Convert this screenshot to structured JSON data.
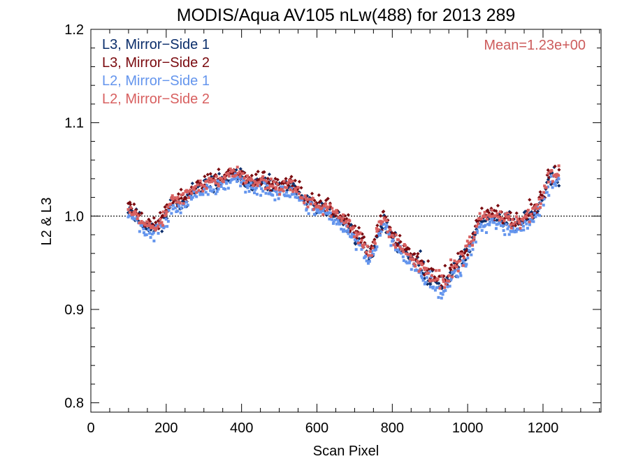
{
  "chart_data": {
    "type": "scatter",
    "title": "MODIS/Aqua AV105 nLw(488) for 2013 289",
    "xlabel": "Scan Pixel",
    "ylabel": "L2 & L3",
    "xlim": [
      0,
      1354
    ],
    "ylim": [
      0.79,
      1.2
    ],
    "x_ticks": [
      0,
      200,
      400,
      600,
      800,
      1000,
      1200
    ],
    "y_ticks": [
      0.8,
      0.9,
      1.0,
      1.1,
      1.2
    ],
    "x_tick_labels": [
      "0",
      "200",
      "400",
      "600",
      "800",
      "1000",
      "1200"
    ],
    "y_tick_labels": [
      "0.8",
      "0.9",
      "1.0",
      "1.1",
      "1.2"
    ],
    "reference_line": 1.0,
    "annotation": "Mean=1.23e+00",
    "annotation_color": "#CD5C5C",
    "legend_position": "top-left",
    "series": [
      {
        "name": "L3, Mirror−Side 1",
        "color": "#0B2E6B",
        "marker": "diamond",
        "offset": 0.0,
        "noise": 0.012,
        "seed": 11
      },
      {
        "name": "L3, Mirror−Side 2",
        "color": "#7A0A0F",
        "marker": "diamond",
        "offset": 0.004,
        "noise": 0.013,
        "seed": 23
      },
      {
        "name": "L2, Mirror−Side 1",
        "color": "#6495ED",
        "marker": "square",
        "offset": -0.006,
        "noise": 0.011,
        "seed": 37
      },
      {
        "name": "L2, Mirror−Side 2",
        "color": "#D86060",
        "marker": "square",
        "offset": 0.002,
        "noise": 0.011,
        "seed": 53
      }
    ],
    "trend": {
      "x": [
        100,
        130,
        160,
        180,
        200,
        215,
        240,
        280,
        320,
        360,
        390,
        420,
        460,
        500,
        540,
        570,
        600,
        640,
        680,
        700,
        720,
        740,
        760,
        780,
        800,
        840,
        880,
        900,
        930,
        960,
        990,
        1010,
        1030,
        1060,
        1100,
        1140,
        1180,
        1200,
        1220,
        1245
      ],
      "y": [
        1.01,
        0.995,
        0.985,
        0.99,
        1.0,
        1.015,
        1.015,
        1.03,
        1.035,
        1.04,
        1.045,
        1.035,
        1.035,
        1.03,
        1.03,
        1.015,
        1.01,
        1.005,
        0.99,
        0.98,
        0.97,
        0.955,
        0.98,
        0.995,
        0.975,
        0.96,
        0.945,
        0.935,
        0.925,
        0.94,
        0.955,
        0.97,
        0.995,
        1.0,
        0.995,
        0.99,
        1.005,
        1.02,
        1.04,
        1.045
      ]
    },
    "x_start": 100,
    "x_end": 1245,
    "x_step": 3
  }
}
